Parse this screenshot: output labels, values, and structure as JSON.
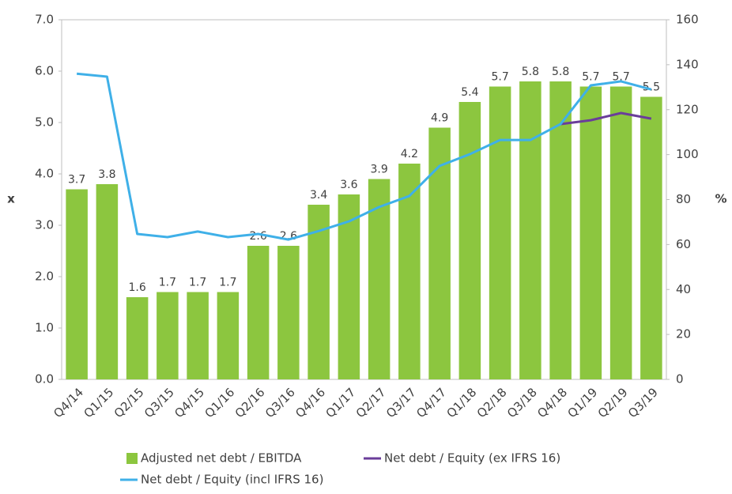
{
  "chart_data": {
    "type": "bar",
    "categories": [
      "Q4/14",
      "Q1/15",
      "Q2/15",
      "Q3/15",
      "Q4/15",
      "Q1/16",
      "Q2/16",
      "Q3/16",
      "Q4/16",
      "Q1/17",
      "Q2/17",
      "Q3/17",
      "Q4/17",
      "Q1/18",
      "Q2/18",
      "Q3/18",
      "Q4/18",
      "Q1/19",
      "Q2/19",
      "Q3/19"
    ],
    "series": [
      {
        "name": "Adjusted net debt / EBITDA",
        "type": "bar",
        "color": "#8cc63f",
        "values": [
          3.7,
          3.8,
          1.6,
          1.7,
          1.7,
          1.7,
          2.6,
          2.6,
          3.4,
          3.6,
          3.9,
          4.2,
          4.9,
          5.4,
          5.7,
          5.8,
          5.8,
          5.7,
          5.7,
          5.5
        ]
      },
      {
        "name": "Net debt / Equity (ex IFRS 16)",
        "type": "line",
        "axis": "y2",
        "color": "#6a3d9a",
        "values": [
          null,
          null,
          null,
          null,
          null,
          null,
          null,
          null,
          null,
          null,
          null,
          null,
          null,
          null,
          null,
          null,
          113.6,
          115.3,
          118.5,
          116
        ]
      },
      {
        "name": "Net debt / Equity (incl IFRS 16)",
        "type": "line",
        "axis": "y2",
        "color": "#3fb0e8",
        "values": [
          136,
          134.7,
          64.7,
          63.3,
          65.8,
          63.3,
          64.7,
          62.2,
          66,
          70.3,
          76.7,
          81.6,
          95,
          100.2,
          106.5,
          106.5,
          113.6,
          130.8,
          132.6,
          129
        ]
      }
    ],
    "ylabel": "x",
    "y2label": "%",
    "ylim": [
      0,
      7
    ],
    "yticks": [
      {
        "value": 0,
        "label": "0.0"
      },
      {
        "value": 1,
        "label": "1.0"
      },
      {
        "value": 2,
        "label": "2.0"
      },
      {
        "value": 3,
        "label": "3.0"
      },
      {
        "value": 4,
        "label": "4.0"
      },
      {
        "value": 5,
        "label": "5.0"
      },
      {
        "value": 6,
        "label": "6.0"
      },
      {
        "value": 7,
        "label": "7.0"
      }
    ],
    "y2lim": [
      0,
      160
    ],
    "y2ticks": [
      0,
      20,
      40,
      60,
      80,
      100,
      120,
      140,
      160
    ],
    "grid": false
  }
}
